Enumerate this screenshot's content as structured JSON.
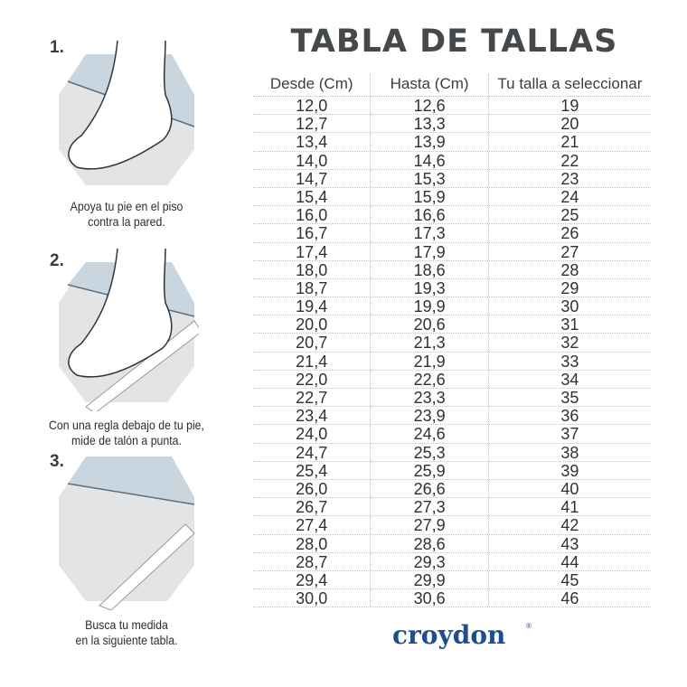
{
  "steps": [
    {
      "number": "1.",
      "caption_line1": "Apoya tu pie en el piso",
      "caption_line2": "contra la pared."
    },
    {
      "number": "2.",
      "caption_line1": "Con una regla debajo de tu pie,",
      "caption_line2": "mide de talón a punta."
    },
    {
      "number": "3.",
      "caption_line1": "Busca tu medida",
      "caption_line2": "en la siguiente tabla."
    }
  ],
  "title": "TABLA DE TALLAS",
  "table": {
    "headers": [
      "Desde (Cm)",
      "Hasta (Cm)",
      "Tu talla a seleccionar"
    ],
    "rows": [
      [
        "12,0",
        "12,6",
        "19"
      ],
      [
        "12,7",
        "13,3",
        "20"
      ],
      [
        "13,4",
        "13,9",
        "21"
      ],
      [
        "14,0",
        "14,6",
        "22"
      ],
      [
        "14,7",
        "15,3",
        "23"
      ],
      [
        "15,4",
        "15,9",
        "24"
      ],
      [
        "16,0",
        "16,6",
        "25"
      ],
      [
        "16,7",
        "17,3",
        "26"
      ],
      [
        "17,4",
        "17,9",
        "27"
      ],
      [
        "18,0",
        "18,6",
        "28"
      ],
      [
        "18,7",
        "19,3",
        "29"
      ],
      [
        "19,4",
        "19,9",
        "30"
      ],
      [
        "20,0",
        "20,6",
        "31"
      ],
      [
        "20,7",
        "21,3",
        "32"
      ],
      [
        "21,4",
        "21,9",
        "33"
      ],
      [
        "22,0",
        "22,6",
        "34"
      ],
      [
        "22,7",
        "23,3",
        "35"
      ],
      [
        "23,4",
        "23,9",
        "36"
      ],
      [
        "24,0",
        "24,6",
        "37"
      ],
      [
        "24,7",
        "25,3",
        "38"
      ],
      [
        "25,4",
        "25,9",
        "39"
      ],
      [
        "26,0",
        "26,6",
        "40"
      ],
      [
        "26,7",
        "27,3",
        "41"
      ],
      [
        "27,4",
        "27,9",
        "42"
      ],
      [
        "28,0",
        "28,6",
        "43"
      ],
      [
        "28,7",
        "29,3",
        "44"
      ],
      [
        "29,4",
        "29,9",
        "45"
      ],
      [
        "30,0",
        "30,6",
        "46"
      ]
    ]
  },
  "logo": {
    "text": "croydon",
    "mark": "®"
  },
  "colors": {
    "text": "#3a3d40",
    "brand": "#1f4e8c",
    "wall": "#c9d6df",
    "floor": "#e3e4e6"
  }
}
